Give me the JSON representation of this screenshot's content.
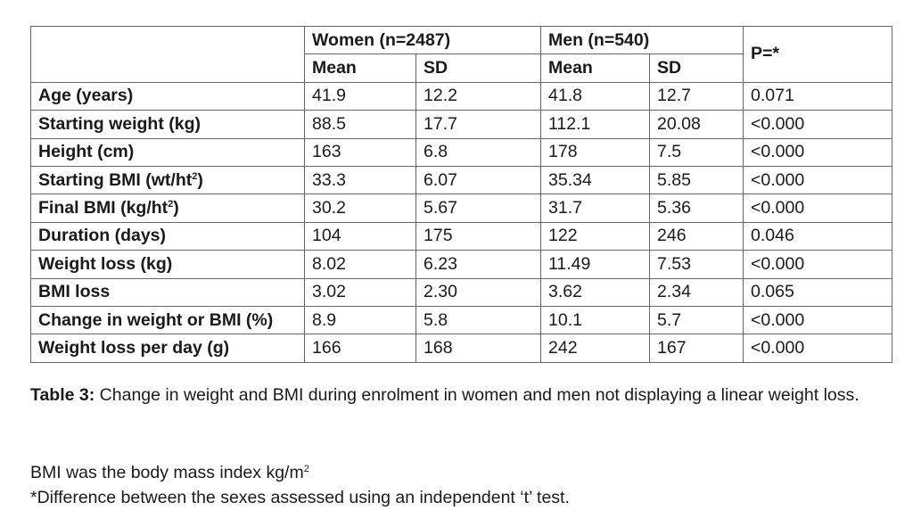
{
  "table": {
    "groups": [
      "Women (n=2487)",
      "Men (n=540)"
    ],
    "p_header": "P=*",
    "subheaders": [
      "Mean",
      "SD",
      "Mean",
      "SD"
    ],
    "rows": [
      {
        "label": "Age (years)",
        "label_sup": "",
        "label_suffix": "",
        "values": [
          "41.9",
          "12.2",
          "41.8",
          "12.7",
          "0.071"
        ]
      },
      {
        "label": "Starting weight (kg)",
        "label_sup": "",
        "label_suffix": "",
        "values": [
          "88.5",
          "17.7",
          "112.1",
          "20.08",
          "<0.000"
        ]
      },
      {
        "label": "Height (cm)",
        "label_sup": "",
        "label_suffix": "",
        "values": [
          "163",
          "6.8",
          "178",
          "7.5",
          "<0.000"
        ]
      },
      {
        "label": "Starting BMI (wt/ht",
        "label_sup": "2",
        "label_suffix": ")",
        "values": [
          "33.3",
          "6.07",
          "35.34",
          "5.85",
          "<0.000"
        ]
      },
      {
        "label": "Final BMI (kg/ht",
        "label_sup": "2",
        "label_suffix": ")",
        "values": [
          "30.2",
          "5.67",
          "31.7",
          "5.36",
          "<0.000"
        ]
      },
      {
        "label": "Duration (days)",
        "label_sup": "",
        "label_suffix": "",
        "values": [
          "104",
          "175",
          "122",
          "246",
          "0.046"
        ]
      },
      {
        "label": "Weight loss (kg)",
        "label_sup": "",
        "label_suffix": "",
        "values": [
          "8.02",
          "6.23",
          "11.49",
          "7.53",
          "<0.000"
        ]
      },
      {
        "label": "BMI loss",
        "label_sup": "",
        "label_suffix": "",
        "values": [
          "3.02",
          "2.30",
          "3.62",
          "2.34",
          "0.065"
        ]
      },
      {
        "label": "Change in weight or BMI (%)",
        "label_sup": "",
        "label_suffix": "",
        "values": [
          "8.9",
          "5.8",
          "10.1",
          "5.7",
          "<0.000"
        ]
      },
      {
        "label": "Weight loss per day (g)",
        "label_sup": "",
        "label_suffix": "",
        "values": [
          "166",
          "168",
          "242",
          "167",
          "<0.000"
        ]
      }
    ]
  },
  "caption": {
    "label": "Table 3:",
    "text": " Change in weight and BMI during enrolment in women and men not displaying a linear weight loss."
  },
  "notes": {
    "bmi_text": "BMI was the body mass index kg/m",
    "bmi_sup": "2",
    "ttest": "*Difference between the sexes assessed using an independent ‘t’ test."
  }
}
